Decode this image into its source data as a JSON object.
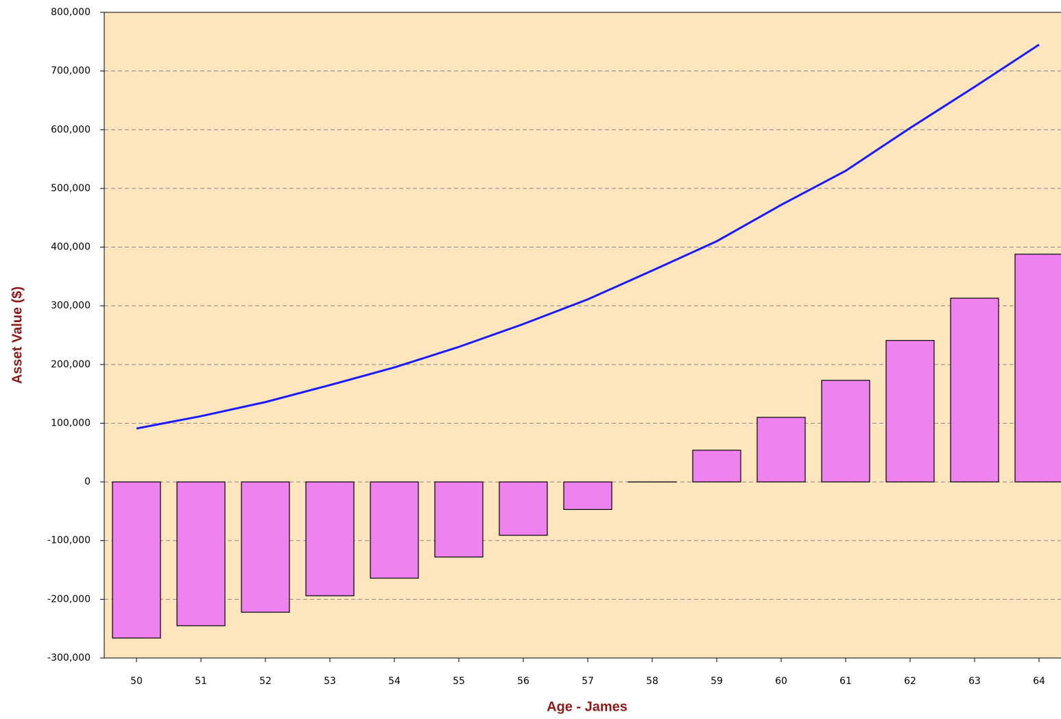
{
  "chart_data": {
    "type": "combo",
    "x_label": "Age - James",
    "y_label": "Asset Value ($)",
    "categories": [
      "50",
      "51",
      "52",
      "53",
      "54",
      "55",
      "56",
      "57",
      "58",
      "59",
      "60",
      "61",
      "62",
      "63",
      "64"
    ],
    "series": [
      {
        "type": "bar",
        "color": "#ee82ee",
        "values": [
          -266000,
          -245000,
          -222000,
          -194000,
          -164000,
          -128000,
          -91000,
          -47000,
          0,
          54000,
          110000,
          173000,
          241000,
          313000,
          388000
        ]
      },
      {
        "type": "line",
        "color": "#1a1aff",
        "values": [
          91000,
          112000,
          136000,
          165000,
          195000,
          230000,
          269000,
          311000,
          360000,
          410000,
          472000,
          530000,
          603000,
          673000,
          745000
        ]
      }
    ],
    "ylim": [
      -300000,
      800000
    ],
    "yticks": [
      {
        "value": -300000,
        "label": "-300,000"
      },
      {
        "value": -200000,
        "label": "-200,000"
      },
      {
        "value": -100000,
        "label": "-100,000"
      },
      0,
      {
        "value": 100000,
        "label": "100,000"
      },
      {
        "value": 200000,
        "label": "200,000"
      },
      {
        "value": 300000,
        "label": "300,000"
      },
      {
        "value": 400000,
        "label": "400,000"
      },
      {
        "value": 500000,
        "label": "500,000"
      },
      {
        "value": 600000,
        "label": "600,000"
      },
      {
        "value": 700000,
        "label": "700,000"
      },
      {
        "value": 800000,
        "label": "800,000"
      }
    ],
    "grid": true,
    "background": "#fde5bd"
  }
}
